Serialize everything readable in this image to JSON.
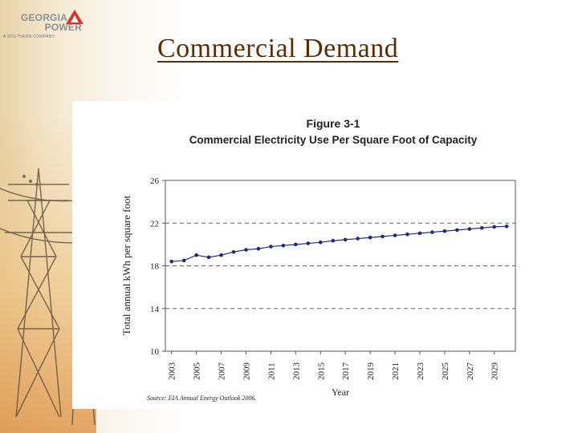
{
  "logo": {
    "line1": "GEORGIA",
    "line2": "POWER",
    "tagline": "A SOUTHERN COMPANY"
  },
  "slide": {
    "title": "Commercial Demand"
  },
  "chart_data": {
    "type": "line",
    "figure_label": "Figure 3-1",
    "title": "Commercial Electricity Use Per Square Foot of Capacity",
    "xlabel": "Year",
    "ylabel": "Total annual kWh per square foot",
    "source": "Source: EIA Annual Energy Outlook 2006.",
    "ylim": [
      10,
      26
    ],
    "yticks": [
      10,
      14,
      18,
      22,
      26
    ],
    "gridlines": "dashed at 18 and 22",
    "xticks": [
      "2003",
      "2005",
      "2007",
      "2009",
      "2011",
      "2013",
      "2015",
      "2017",
      "2019",
      "2021",
      "2023",
      "2025",
      "2027",
      "2029"
    ],
    "series": [
      {
        "name": "Commercial electricity use per square foot",
        "color": "#1f2b7a",
        "x": [
          2003,
          2004,
          2005,
          2006,
          2007,
          2008,
          2009,
          2010,
          2011,
          2012,
          2013,
          2014,
          2015,
          2016,
          2017,
          2018,
          2019,
          2020,
          2021,
          2022,
          2023,
          2024,
          2025,
          2026,
          2027,
          2028,
          2029,
          2030
        ],
        "values": [
          18.4,
          18.5,
          19.0,
          18.8,
          19.0,
          19.3,
          19.5,
          19.6,
          19.8,
          19.9,
          20.0,
          20.1,
          20.2,
          20.35,
          20.45,
          20.55,
          20.65,
          20.75,
          20.85,
          20.95,
          21.05,
          21.15,
          21.25,
          21.35,
          21.45,
          21.55,
          21.65,
          21.7
        ]
      }
    ]
  }
}
